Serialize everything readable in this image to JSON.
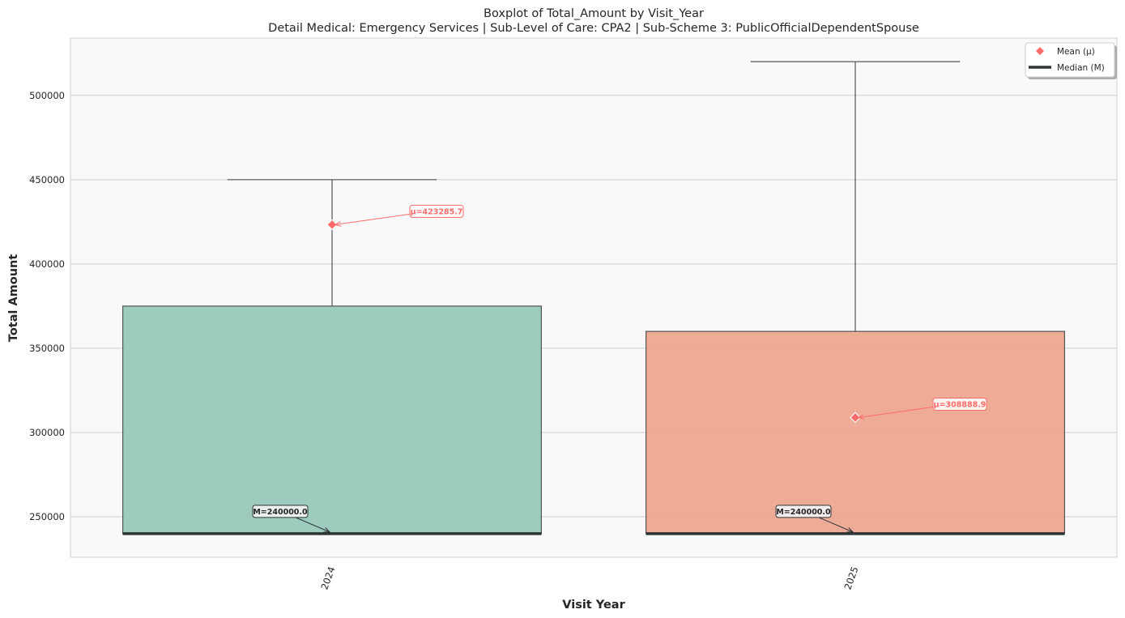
{
  "chart_data": {
    "type": "boxplot",
    "title": "Boxplot of Total_Amount by Visit_Year",
    "subtitle": "Detail Medical: Emergency Services | Sub-Level of Care: CPA2 | Sub-Scheme 3: PublicOfficialDependentSpouse",
    "xlabel": "Visit Year",
    "ylabel": "Total Amount",
    "ylim": [
      226000,
      534000
    ],
    "yticks": [
      250000,
      300000,
      350000,
      400000,
      450000,
      500000
    ],
    "grid": "horizontal",
    "legend": {
      "placement": "top-right",
      "entries": [
        {
          "label": "Mean (μ)",
          "marker": "diamond",
          "color": "#ff6b6b"
        },
        {
          "label": "Median (M)",
          "marker": "line",
          "color": "#2d3436"
        }
      ]
    },
    "categories": [
      "2024",
      "2025"
    ],
    "boxes": [
      {
        "category": "2024",
        "min": 240000,
        "q1": 240000,
        "median": 240000,
        "q3": 375000,
        "whisker_high": 450000,
        "mean": 423285.7,
        "mean_label": "μ=423285.7",
        "median_label": "M=240000.0",
        "color": "#8dc3b3"
      },
      {
        "category": "2025",
        "min": 240000,
        "q1": 240000,
        "median": 240000,
        "q3": 360000,
        "whisker_high": 520000,
        "mean": 308888.9,
        "mean_label": "μ=308888.9",
        "median_label": "M=240000.0",
        "color": "#ec9f85"
      }
    ],
    "colors": {
      "plot_bg": "#f9f9f9",
      "grid": "#cfcfcf",
      "box_edge": "#555555",
      "mean": "#ff6b6b",
      "median": "#2d3436"
    }
  }
}
